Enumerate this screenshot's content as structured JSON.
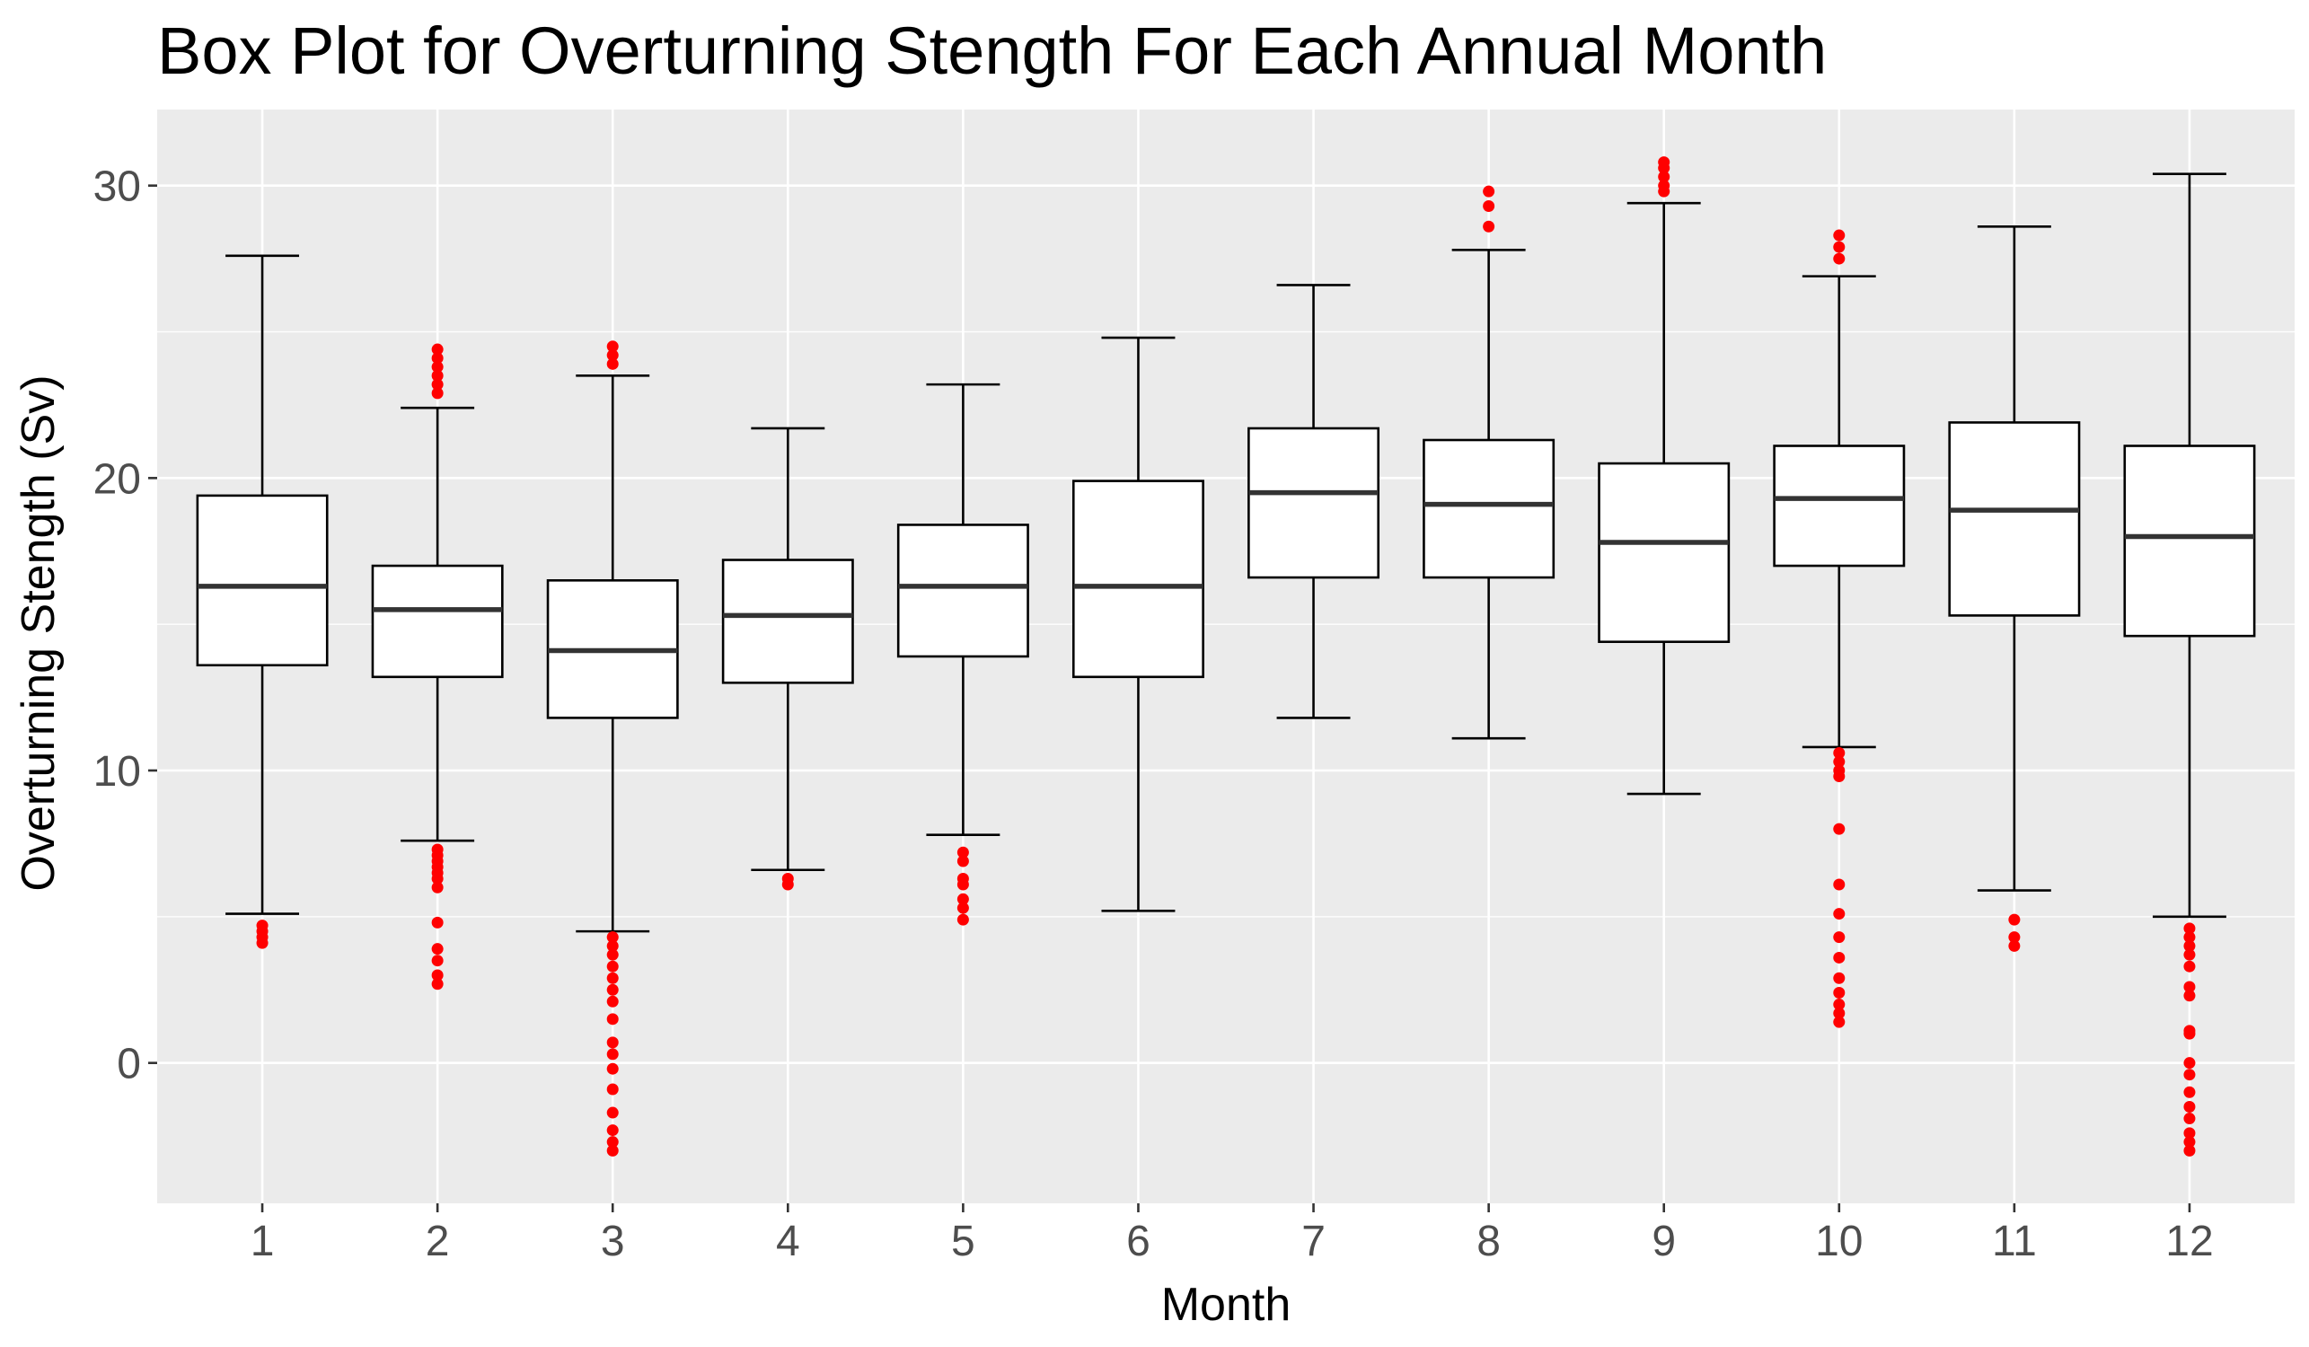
{
  "chart_data": {
    "type": "box",
    "title": "Box Plot for Overturning Stength For Each Annual Month",
    "xlabel": "Month",
    "ylabel": "Overturning Stength (Sv)",
    "categories": [
      "1",
      "2",
      "3",
      "4",
      "5",
      "6",
      "7",
      "8",
      "9",
      "10",
      "11",
      "12"
    ],
    "y_ticks": [
      0,
      10,
      20,
      30
    ],
    "y_tick_labels": [
      "0",
      "10",
      "20",
      "30"
    ],
    "ylim": [
      -4.8,
      32.6
    ],
    "grid": true,
    "legend": "none",
    "colors": {
      "panel_background": "#ebebeb",
      "gridline": "#ffffff",
      "box_fill": "#ffffff",
      "box_stroke": "#000000",
      "median": "#333333",
      "outlier": "#ff0000",
      "tick_label": "#4d4d4d",
      "tick_mark": "#333333"
    },
    "boxes": [
      {
        "month": "1",
        "whisker_low": 5.1,
        "q1": 13.6,
        "median": 16.3,
        "q3": 19.4,
        "whisker_high": 27.6,
        "outliers": [
          4.1,
          4.3,
          4.5,
          4.7
        ]
      },
      {
        "month": "2",
        "whisker_low": 7.6,
        "q1": 13.2,
        "median": 15.5,
        "q3": 17.0,
        "whisker_high": 22.4,
        "outliers": [
          24.4,
          24.1,
          23.8,
          23.5,
          23.2,
          22.9,
          7.3,
          7.1,
          6.9,
          6.7,
          6.5,
          6.3,
          6.0,
          4.8,
          3.9,
          3.5,
          3.0,
          2.7
        ]
      },
      {
        "month": "3",
        "whisker_low": 4.5,
        "q1": 11.8,
        "median": 14.1,
        "q3": 16.5,
        "whisker_high": 23.5,
        "outliers": [
          24.5,
          24.2,
          23.9,
          4.3,
          4.0,
          3.7,
          3.3,
          2.9,
          2.5,
          2.1,
          1.5,
          0.7,
          0.3,
          -0.2,
          -0.9,
          -1.7,
          -2.3,
          -2.7,
          -3.0
        ]
      },
      {
        "month": "4",
        "whisker_low": 6.6,
        "q1": 13.0,
        "median": 15.3,
        "q3": 17.2,
        "whisker_high": 21.7,
        "outliers": [
          6.3,
          6.1
        ]
      },
      {
        "month": "5",
        "whisker_low": 7.8,
        "q1": 13.9,
        "median": 16.3,
        "q3": 18.4,
        "whisker_high": 23.2,
        "outliers": [
          7.2,
          6.9,
          6.3,
          6.1,
          5.6,
          5.3,
          4.9
        ]
      },
      {
        "month": "6",
        "whisker_low": 5.2,
        "q1": 13.2,
        "median": 16.3,
        "q3": 19.9,
        "whisker_high": 24.8,
        "outliers": []
      },
      {
        "month": "7",
        "whisker_low": 11.8,
        "q1": 16.6,
        "median": 19.5,
        "q3": 21.7,
        "whisker_high": 26.6,
        "outliers": []
      },
      {
        "month": "8",
        "whisker_low": 11.1,
        "q1": 16.6,
        "median": 19.1,
        "q3": 21.3,
        "whisker_high": 27.8,
        "outliers": [
          29.8,
          29.3,
          28.6
        ]
      },
      {
        "month": "9",
        "whisker_low": 9.2,
        "q1": 14.4,
        "median": 17.8,
        "q3": 20.5,
        "whisker_high": 29.4,
        "outliers": [
          30.8,
          30.6,
          30.3,
          30.0,
          29.8
        ]
      },
      {
        "month": "10",
        "whisker_low": 10.8,
        "q1": 17.0,
        "median": 19.3,
        "q3": 21.1,
        "whisker_high": 26.9,
        "outliers": [
          28.3,
          27.9,
          27.5,
          10.6,
          10.3,
          10.0,
          9.8,
          8.0,
          6.1,
          5.1,
          4.3,
          3.6,
          2.9,
          2.4,
          2.0,
          1.7,
          1.4
        ]
      },
      {
        "month": "11",
        "whisker_low": 5.9,
        "q1": 15.3,
        "median": 18.9,
        "q3": 21.9,
        "whisker_high": 28.6,
        "outliers": [
          4.9,
          4.3,
          4.0
        ]
      },
      {
        "month": "12",
        "whisker_low": 5.0,
        "q1": 14.6,
        "median": 18.0,
        "q3": 21.1,
        "whisker_high": 30.4,
        "outliers": [
          4.6,
          4.3,
          4.0,
          3.7,
          3.3,
          2.6,
          2.3,
          1.1,
          1.0,
          0.0,
          -0.4,
          -1.0,
          -1.5,
          -1.9,
          -2.4,
          -2.7,
          -3.0
        ]
      }
    ]
  }
}
